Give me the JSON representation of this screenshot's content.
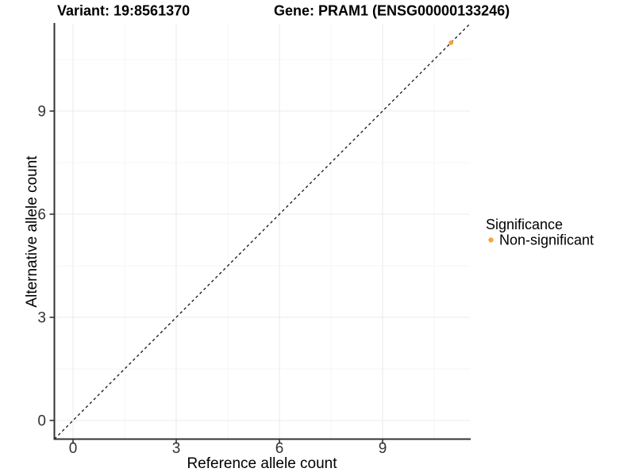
{
  "titles": {
    "variant": "Variant: 19:8561370",
    "gene": "Gene: PRAM1 (ENSG00000133246)"
  },
  "axes": {
    "x": {
      "label": "Reference allele count",
      "ticks": [
        "0",
        "3",
        "6",
        "9"
      ]
    },
    "y": {
      "label": "Alternative allele count",
      "ticks": [
        "0",
        "3",
        "6",
        "9"
      ]
    }
  },
  "legend": {
    "title": "Significance",
    "items": [
      {
        "label": "Non-significant",
        "color": "#F9A13B",
        "marker": "circle-icon"
      }
    ]
  },
  "colors": {
    "point": "#F9A13B",
    "axis_line": "#333333",
    "grid_major": "#EBEBEB",
    "grid_minor": "#F5F5F5",
    "dashed_line": "#111111",
    "background": "#FFFFFF"
  },
  "chart_data": {
    "type": "scatter",
    "title": "Variant: 19:8561370    Gene: PRAM1 (ENSG00000133246)",
    "xlabel": "Reference allele count",
    "ylabel": "Alternative allele count",
    "xlim": [
      -0.55,
      11.55
    ],
    "ylim": [
      -0.55,
      11.55
    ],
    "xticks": [
      0,
      3,
      6,
      9
    ],
    "yticks": [
      0,
      3,
      6,
      9
    ],
    "grid": "major and minor gridlines on, white panel background",
    "legend_position": "right",
    "series": [
      {
        "name": "Non-significant",
        "color": "#F9A13B",
        "points": [
          {
            "x": 11,
            "y": 11
          }
        ]
      }
    ],
    "reference_line": {
      "kind": "identity y=x",
      "slope": 1,
      "intercept": 0,
      "style": "dashed",
      "color": "#111111"
    }
  }
}
